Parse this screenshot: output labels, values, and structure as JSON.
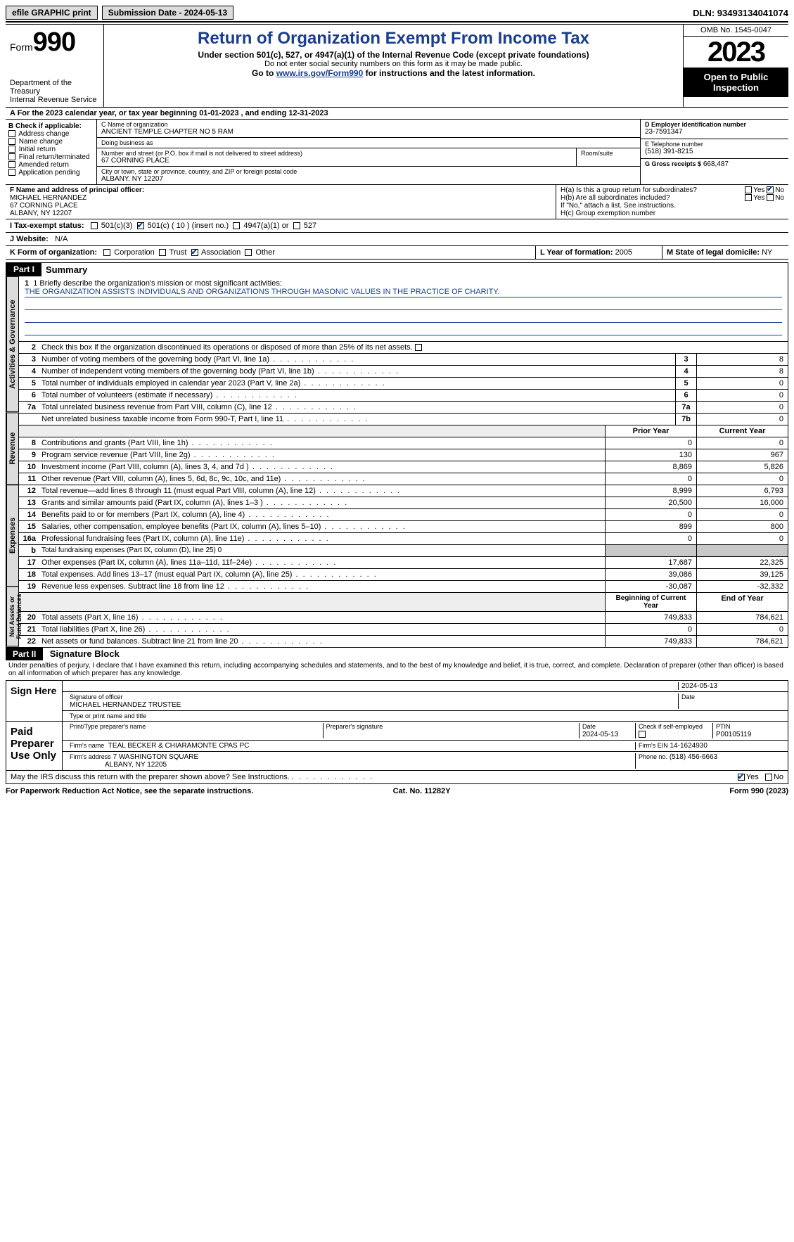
{
  "colors": {
    "accent": "#1a3d8f",
    "shade": "#c8c8c8",
    "tab": "#dcdcdc"
  },
  "topbar": {
    "efile": "efile GRAPHIC print",
    "submission": "Submission Date - 2024-05-13",
    "dln": "DLN: 93493134041074"
  },
  "header": {
    "form_label": "Form",
    "form_number": "990",
    "dept": "Department of the Treasury\nInternal Revenue Service",
    "title": "Return of Organization Exempt From Income Tax",
    "subtitle": "Under section 501(c), 527, or 4947(a)(1) of the Internal Revenue Code (except private foundations)",
    "note1": "Do not enter social security numbers on this form as it may be made public.",
    "note2_pre": "Go to ",
    "note2_link": "www.irs.gov/Form990",
    "note2_post": " for instructions and the latest information.",
    "omb": "OMB No. 1545-0047",
    "year": "2023",
    "inspect": "Open to Public Inspection"
  },
  "row_a": "A  For the 2023 calendar year, or tax year beginning 01-01-2023   , and ending 12-31-2023",
  "section_b": {
    "title": "B Check if applicable:",
    "items": [
      "Address change",
      "Name change",
      "Initial return",
      "Final return/terminated",
      "Amended return",
      "Application pending"
    ]
  },
  "section_c": {
    "name_lbl": "C Name of organization",
    "name": "ANCIENT TEMPLE CHAPTER NO 5 RAM",
    "dba_lbl": "Doing business as",
    "dba": "",
    "addr_lbl": "Number and street (or P.O. box if mail is not delivered to street address)",
    "room_lbl": "Room/suite",
    "addr": "67 CORNING PLACE",
    "city_lbl": "City or town, state or province, country, and ZIP or foreign postal code",
    "city": "ALBANY, NY  12207"
  },
  "section_d": {
    "lbl": "D Employer identification number",
    "val": "23-7591347"
  },
  "section_e": {
    "lbl": "E Telephone number",
    "val": "(518) 391-8215"
  },
  "section_g": {
    "lbl": "G Gross receipts $",
    "val": "668,487"
  },
  "section_f": {
    "lbl": "F  Name and address of principal officer:",
    "name": "MICHAEL HERNANDEZ",
    "addr1": "67 CORNING PLACE",
    "addr2": "ALBANY, NY  12207"
  },
  "section_h": {
    "a": "H(a)  Is this a group return for subordinates?",
    "b": "H(b)  Are all subordinates included?",
    "b_note": "If \"No,\" attach a list. See instructions.",
    "c": "H(c)  Group exemption number",
    "yes": "Yes",
    "no": "No"
  },
  "row_i": {
    "lbl": "I  Tax-exempt status:",
    "opts": [
      "501(c)(3)",
      "501(c) ( 10 ) (insert no.)",
      "4947(a)(1) or",
      "527"
    ],
    "checked_index": 1
  },
  "row_j": {
    "lbl": "J  Website:",
    "val": "N/A"
  },
  "row_k": {
    "lbl": "K Form of organization:",
    "opts": [
      "Corporation",
      "Trust",
      "Association",
      "Other"
    ],
    "checked_index": 2
  },
  "row_l": {
    "lbl": "L Year of formation:",
    "val": "2005"
  },
  "row_m": {
    "lbl": "M State of legal domicile:",
    "val": "NY"
  },
  "part1": {
    "hdr": "Part I",
    "title": "Summary",
    "mission_lbl": "1  Briefly describe the organization's mission or most significant activities:",
    "mission": "THE ORGANIZATION ASSISTS INDIVIDUALS AND ORGANIZATIONS THROUGH MASONIC VALUES IN THE PRACTICE OF CHARITY.",
    "line2": "Check this box      if the organization discontinued its operations or disposed of more than 25% of its net assets.",
    "tabs": [
      "Activities & Governance",
      "Revenue",
      "Expenses",
      "Net Assets or Fund Balances"
    ],
    "col_prior": "Prior Year",
    "col_current": "Current Year",
    "col_begin": "Beginning of Current Year",
    "col_end": "End of Year",
    "gov_lines": [
      {
        "n": "3",
        "t": "Number of voting members of the governing body (Part VI, line 1a)",
        "b": "3",
        "v": "8"
      },
      {
        "n": "4",
        "t": "Number of independent voting members of the governing body (Part VI, line 1b)",
        "b": "4",
        "v": "8"
      },
      {
        "n": "5",
        "t": "Total number of individuals employed in calendar year 2023 (Part V, line 2a)",
        "b": "5",
        "v": "0"
      },
      {
        "n": "6",
        "t": "Total number of volunteers (estimate if necessary)",
        "b": "6",
        "v": "0"
      },
      {
        "n": "7a",
        "t": "Total unrelated business revenue from Part VIII, column (C), line 12",
        "b": "7a",
        "v": "0"
      },
      {
        "n": "",
        "t": "Net unrelated business taxable income from Form 990-T, Part I, line 11",
        "b": "7b",
        "v": "0"
      }
    ],
    "rev_lines": [
      {
        "n": "8",
        "t": "Contributions and grants (Part VIII, line 1h)",
        "p": "0",
        "c": "0"
      },
      {
        "n": "9",
        "t": "Program service revenue (Part VIII, line 2g)",
        "p": "130",
        "c": "967"
      },
      {
        "n": "10",
        "t": "Investment income (Part VIII, column (A), lines 3, 4, and 7d )",
        "p": "8,869",
        "c": "5,826"
      },
      {
        "n": "11",
        "t": "Other revenue (Part VIII, column (A), lines 5, 6d, 8c, 9c, 10c, and 11e)",
        "p": "0",
        "c": "0"
      },
      {
        "n": "12",
        "t": "Total revenue—add lines 8 through 11 (must equal Part VIII, column (A), line 12)",
        "p": "8,999",
        "c": "6,793"
      }
    ],
    "exp_lines": [
      {
        "n": "13",
        "t": "Grants and similar amounts paid (Part IX, column (A), lines 1–3 )",
        "p": "20,500",
        "c": "16,000"
      },
      {
        "n": "14",
        "t": "Benefits paid to or for members (Part IX, column (A), line 4)",
        "p": "0",
        "c": "0"
      },
      {
        "n": "15",
        "t": "Salaries, other compensation, employee benefits (Part IX, column (A), lines 5–10)",
        "p": "899",
        "c": "800"
      },
      {
        "n": "16a",
        "t": "Professional fundraising fees (Part IX, column (A), line 11e)",
        "p": "0",
        "c": "0"
      },
      {
        "n": "b",
        "t": "Total fundraising expenses (Part IX, column (D), line 25) 0",
        "p": "",
        "c": "",
        "shade": true,
        "small": true
      },
      {
        "n": "17",
        "t": "Other expenses (Part IX, column (A), lines 11a–11d, 11f–24e)",
        "p": "17,687",
        "c": "22,325"
      },
      {
        "n": "18",
        "t": "Total expenses. Add lines 13–17 (must equal Part IX, column (A), line 25)",
        "p": "39,086",
        "c": "39,125"
      },
      {
        "n": "19",
        "t": "Revenue less expenses. Subtract line 18 from line 12",
        "p": "-30,087",
        "c": "-32,332"
      }
    ],
    "net_lines": [
      {
        "n": "20",
        "t": "Total assets (Part X, line 16)",
        "p": "749,833",
        "c": "784,621"
      },
      {
        "n": "21",
        "t": "Total liabilities (Part X, line 26)",
        "p": "0",
        "c": "0"
      },
      {
        "n": "22",
        "t": "Net assets or fund balances. Subtract line 21 from line 20",
        "p": "749,833",
        "c": "784,621"
      }
    ]
  },
  "part2": {
    "hdr": "Part II",
    "title": "Signature Block",
    "penalty": "Under penalties of perjury, I declare that I have examined this return, including accompanying schedules and statements, and to the best of my knowledge and belief, it is true, correct, and complete. Declaration of preparer (other than officer) is based on all information of which preparer has any knowledge.",
    "sign_here": "Sign Here",
    "sig_officer_lbl": "Signature of officer",
    "sig_date_lbl": "Date",
    "sig_date": "2024-05-13",
    "officer_name": "MICHAEL HERNANDEZ  TRUSTEE",
    "type_name_lbl": "Type or print name and title",
    "paid": "Paid Preparer Use Only",
    "prep_name_lbl": "Print/Type preparer's name",
    "prep_sig_lbl": "Preparer's signature",
    "prep_date_lbl": "Date",
    "prep_date": "2024-05-13",
    "self_emp": "Check       if self-employed",
    "ptin_lbl": "PTIN",
    "ptin": "P00105119",
    "firm_name_lbl": "Firm's name",
    "firm_name": "TEAL BECKER & CHIARAMONTE CPAS PC",
    "firm_ein_lbl": "Firm's EIN",
    "firm_ein": "14-1624930",
    "firm_addr_lbl": "Firm's address",
    "firm_addr1": "7 WASHINGTON SQUARE",
    "firm_addr2": "ALBANY, NY  12205",
    "phone_lbl": "Phone no.",
    "phone": "(518) 456-6663",
    "discuss": "May the IRS discuss this return with the preparer shown above? See Instructions.",
    "yes": "Yes",
    "no": "No"
  },
  "footer": {
    "left": "For Paperwork Reduction Act Notice, see the separate instructions.",
    "mid": "Cat. No. 11282Y",
    "right": "Form 990 (2023)"
  }
}
